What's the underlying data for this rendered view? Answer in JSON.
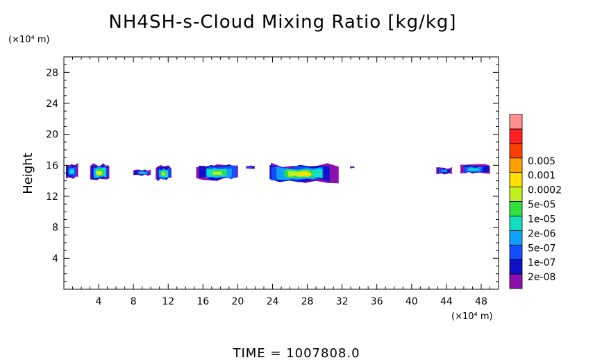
{
  "chart_data": {
    "type": "heatmap",
    "title": "NH4SH-s-Cloud Mixing Ratio [kg/kg]",
    "ylabel": "Height",
    "y_unit": "(×10⁴ m)",
    "x_unit": "(×10⁴ m)",
    "xlim": [
      0,
      50
    ],
    "ylim": [
      0,
      30
    ],
    "x_ticks": [
      4,
      8,
      12,
      16,
      20,
      24,
      28,
      32,
      36,
      40,
      44,
      48
    ],
    "y_ticks": [
      4,
      8,
      12,
      16,
      20,
      24,
      28
    ],
    "time_label": "TIME  =  1007808.0",
    "legend": {
      "labels": [
        "2e-08",
        "1e-07",
        "5e-07",
        "2e-06",
        "1e-05",
        "5e-05",
        "0.0002",
        "0.001",
        "0.005"
      ],
      "colors": [
        "#8a10b0",
        "#1010c8",
        "#1050ff",
        "#10a0ff",
        "#10e0c0",
        "#30e040",
        "#c0f020",
        "#ffe000",
        "#ffa000",
        "#ff4000",
        "#ff2020",
        "#ff9090"
      ]
    },
    "clouds": [
      {
        "x0": 0.2,
        "x1": 1.6,
        "top": 16.3,
        "bottom": 14.2,
        "level": 4
      },
      {
        "x0": 3.0,
        "x1": 5.2,
        "top": 16.3,
        "bottom": 13.9,
        "level": 7
      },
      {
        "x0": 8.0,
        "x1": 10.0,
        "top": 15.5,
        "bottom": 14.6,
        "level": 4
      },
      {
        "x0": 10.6,
        "x1": 12.4,
        "top": 16.1,
        "bottom": 13.9,
        "level": 6
      },
      {
        "x0": 15.4,
        "x1": 20.2,
        "top": 16.3,
        "bottom": 13.9,
        "level": 6
      },
      {
        "x0": 21.0,
        "x1": 22.0,
        "top": 16.0,
        "bottom": 15.5,
        "level": 2
      },
      {
        "x0": 23.4,
        "x1": 31.2,
        "top": 16.4,
        "bottom": 13.6,
        "level": 7
      },
      {
        "x0": 32.9,
        "x1": 33.4,
        "top": 15.9,
        "bottom": 15.6,
        "level": 2
      },
      {
        "x0": 42.8,
        "x1": 44.6,
        "top": 15.8,
        "bottom": 14.8,
        "level": 3
      },
      {
        "x0": 45.6,
        "x1": 49.0,
        "top": 16.2,
        "bottom": 14.8,
        "level": 4
      }
    ]
  }
}
